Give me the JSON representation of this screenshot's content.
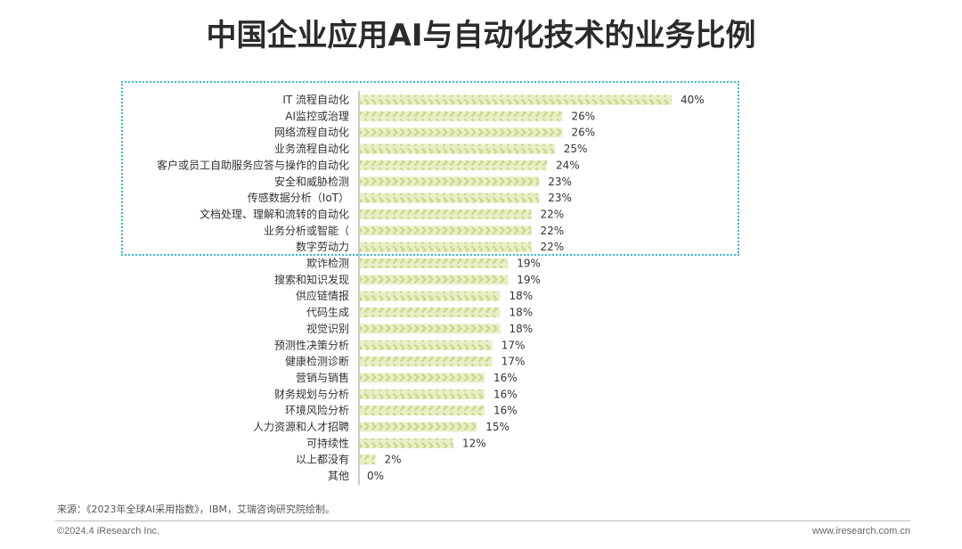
{
  "title": "中国企业应用AI与自动化技术的业务比例",
  "footer": {
    "source": "来源：《2023年全球AI采用指数》，IBM，艾瑞咨询研究院绘制。",
    "copyright": "©2024.4 iResearch Inc.",
    "website": "www.iresearch.com.cn"
  },
  "colors": {
    "bar_fill": "#e8efc7",
    "bar_pattern": "#cfdc92",
    "highlight_border": "#39b6d6",
    "axis": "#999999"
  },
  "chart_data": {
    "type": "bar",
    "orientation": "horizontal",
    "categories": [
      "IT 流程自动化",
      "AI监控或治理",
      "网络流程自动化",
      "业务流程自动化",
      "客户或员工自助服务应答与操作的自动化",
      "安全和威胁检测",
      "传感数据分析（IoT）",
      "文档处理、理解和流转的自动化",
      "业务分析或智能（",
      "数字劳动力",
      "欺诈检测",
      "搜索和知识发现",
      "供应链情报",
      "代码生成",
      "视觉识别",
      "预测性决策分析",
      "健康检测诊断",
      "营销与销售",
      "财务规划与分析",
      "环境风险分析",
      "人力资源和人才招聘",
      "可持续性",
      "以上都没有",
      "其他"
    ],
    "values": [
      40,
      26,
      26,
      25,
      24,
      23,
      23,
      22,
      22,
      22,
      19,
      19,
      18,
      18,
      18,
      17,
      17,
      16,
      16,
      16,
      15,
      12,
      2,
      0
    ],
    "value_labels": [
      "40%",
      "26%",
      "26%",
      "25%",
      "24%",
      "23%",
      "23%",
      "22%",
      "22%",
      "22%",
      "19%",
      "19%",
      "18%",
      "18%",
      "18%",
      "17%",
      "17%",
      "16%",
      "16%",
      "16%",
      "15%",
      "12%",
      "2%",
      "0%"
    ],
    "unit": "%",
    "xlim": [
      0,
      40
    ],
    "highlighted_count": 10
  }
}
